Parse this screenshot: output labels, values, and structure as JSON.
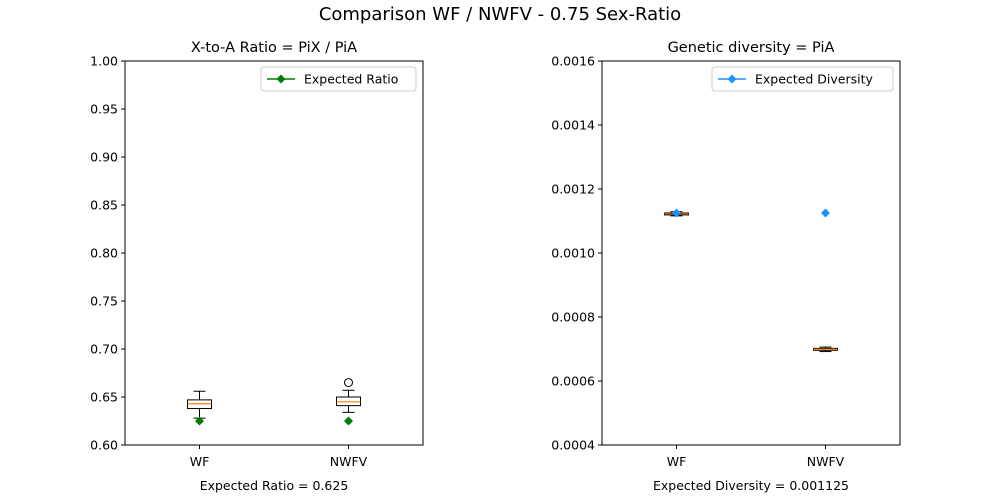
{
  "figure": {
    "suptitle": "Comparison WF / NWFV - 0.75 Sex-Ratio"
  },
  "chart_data": [
    {
      "type": "box",
      "title": "X-to-A Ratio = PiX / PiA",
      "xlabel": "Expected Ratio = 0.625",
      "ylabel": "",
      "categories": [
        "WF",
        "NWFV"
      ],
      "ylim": [
        0.6,
        1.0
      ],
      "yticks": [
        "0.60",
        "0.65",
        "0.70",
        "0.75",
        "0.80",
        "0.85",
        "0.90",
        "0.95",
        "1.00"
      ],
      "yticks_values": [
        0.6,
        0.65,
        0.7,
        0.75,
        0.8,
        0.85,
        0.9,
        0.95,
        1.0
      ],
      "boxes": [
        {
          "category": "WF",
          "whisker_low": 0.628,
          "q1": 0.638,
          "median": 0.643,
          "q3": 0.647,
          "whisker_high": 0.656,
          "outliers": []
        },
        {
          "category": "NWFV",
          "whisker_low": 0.634,
          "q1": 0.641,
          "median": 0.645,
          "q3": 0.65,
          "whisker_high": 0.657,
          "outliers": [
            0.665
          ]
        }
      ],
      "expected": {
        "label": "Expected Ratio",
        "value": 0.625,
        "color": "#008000",
        "marker": "diamond"
      },
      "legend": "top-right",
      "box_color": "#000000",
      "median_color": "#ff7f0e",
      "grid": false
    },
    {
      "type": "box",
      "title": "Genetic diversity = PiA",
      "xlabel": "Expected Diversity = 0.001125",
      "ylabel": "",
      "categories": [
        "WF",
        "NWFV"
      ],
      "ylim": [
        0.0004,
        0.0016
      ],
      "yticks": [
        "0.0004",
        "0.0006",
        "0.0008",
        "0.0010",
        "0.0012",
        "0.0014",
        "0.0016"
      ],
      "yticks_values": [
        0.0004,
        0.0006,
        0.0008,
        0.001,
        0.0012,
        0.0014,
        0.0016
      ],
      "boxes": [
        {
          "category": "WF",
          "whisker_low": 0.001116,
          "q1": 0.001119,
          "median": 0.001122,
          "q3": 0.001125,
          "whisker_high": 0.001129,
          "outliers": []
        },
        {
          "category": "NWFV",
          "whisker_low": 0.000692,
          "q1": 0.000696,
          "median": 0.000699,
          "q3": 0.000702,
          "whisker_high": 0.000706,
          "outliers": []
        }
      ],
      "expected": {
        "label": "Expected Diversity",
        "value": 0.001125,
        "color": "#1e90ff",
        "marker": "diamond"
      },
      "legend": "top-right",
      "box_color": "#000000",
      "median_color": "#ff7f0e",
      "grid": false
    }
  ]
}
